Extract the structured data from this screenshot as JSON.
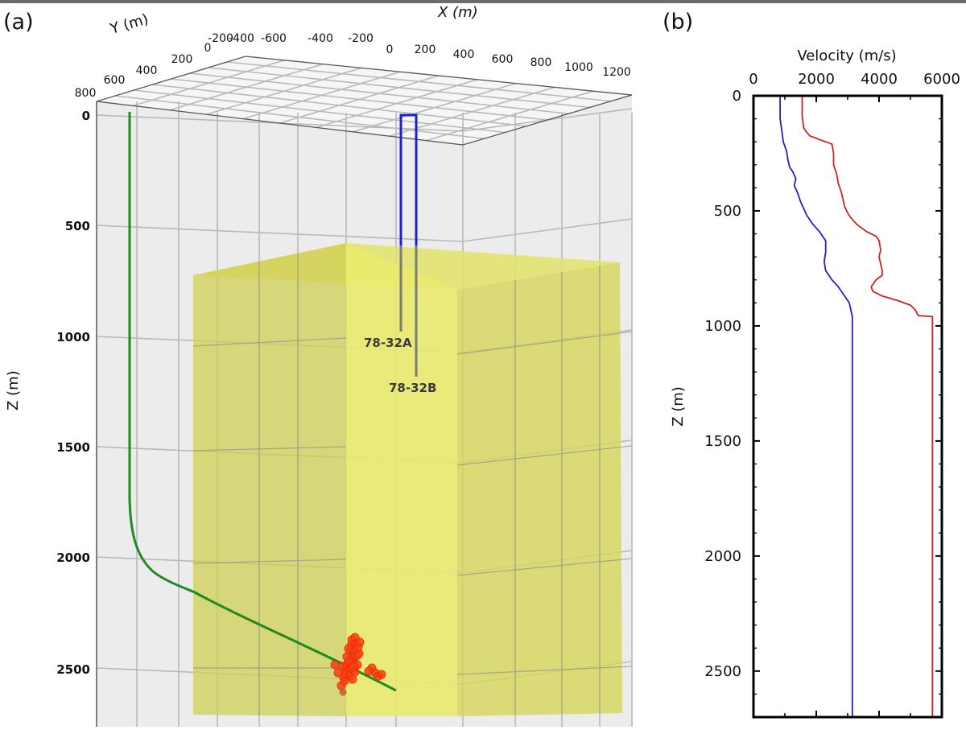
{
  "panels": {
    "a": {
      "label": "(a)",
      "x_axis_label": "X (m)",
      "y_axis_label": "Y (m)",
      "z_axis_label": "Z (m)",
      "x_ticks": [
        "-600",
        "-400",
        "-200",
        "0",
        "200",
        "400",
        "600",
        "800",
        "1000",
        "1200"
      ],
      "y_ticks": [
        "800",
        "600",
        "400",
        "200",
        "0",
        "-200",
        "-400"
      ],
      "z_ticks": [
        "0",
        "500",
        "1000",
        "1500",
        "2000",
        "2500"
      ],
      "wells": [
        {
          "name": "78-32A",
          "color": "#2020d0"
        },
        {
          "name": "78-32B",
          "color": "#2020d0"
        }
      ],
      "injection_well_color": "#1f7a1f",
      "model_box_color": "#e6e650",
      "event_color": "#ff3b10"
    },
    "b": {
      "label": "(b)",
      "xlabel": "Velocity (m/s)",
      "ylabel": "Z (m)",
      "x_ticks": [
        "0",
        "2000",
        "4000",
        "6000"
      ],
      "y_ticks": [
        "0",
        "500",
        "1000",
        "1500",
        "2000",
        "2500"
      ]
    }
  },
  "chart_data": [
    {
      "type": "line",
      "title": "",
      "xlabel": "Velocity (m/s)",
      "ylabel": "Z (m)",
      "xlim": [
        0,
        6000
      ],
      "ylim": [
        2700,
        0
      ],
      "y_inverted": true,
      "series": [
        {
          "color": "#d42020",
          "x": [
            1550,
            1550,
            1600,
            1700,
            1800,
            2100,
            2300,
            2500,
            2550,
            2550,
            2650,
            2700,
            2800,
            2850,
            2900,
            3000,
            3100,
            3300,
            3600,
            3900,
            4000,
            4050,
            4000,
            4050,
            4100,
            4100,
            3900,
            3750,
            3800,
            4100,
            4600,
            5000,
            5150,
            5250,
            5700,
            5700,
            5700
          ],
          "y": [
            0,
            90,
            140,
            160,
            175,
            190,
            200,
            210,
            250,
            300,
            340,
            380,
            420,
            450,
            480,
            510,
            530,
            560,
            590,
            610,
            630,
            670,
            700,
            730,
            760,
            780,
            800,
            830,
            850,
            870,
            890,
            910,
            930,
            955,
            960,
            2000,
            2700
          ]
        },
        {
          "color": "#2020c8",
          "x": [
            850,
            850,
            900,
            950,
            1050,
            1100,
            1150,
            1250,
            1350,
            1300,
            1400,
            1500,
            1700,
            1900,
            2100,
            2300,
            2300,
            2250,
            2300,
            2500,
            2700,
            2850,
            3050,
            3100,
            3150,
            3150,
            3150
          ],
          "y": [
            0,
            100,
            150,
            200,
            240,
            280,
            310,
            330,
            360,
            390,
            420,
            460,
            520,
            560,
            590,
            630,
            680,
            720,
            760,
            800,
            830,
            860,
            900,
            930,
            960,
            2000,
            2700
          ]
        }
      ]
    }
  ]
}
